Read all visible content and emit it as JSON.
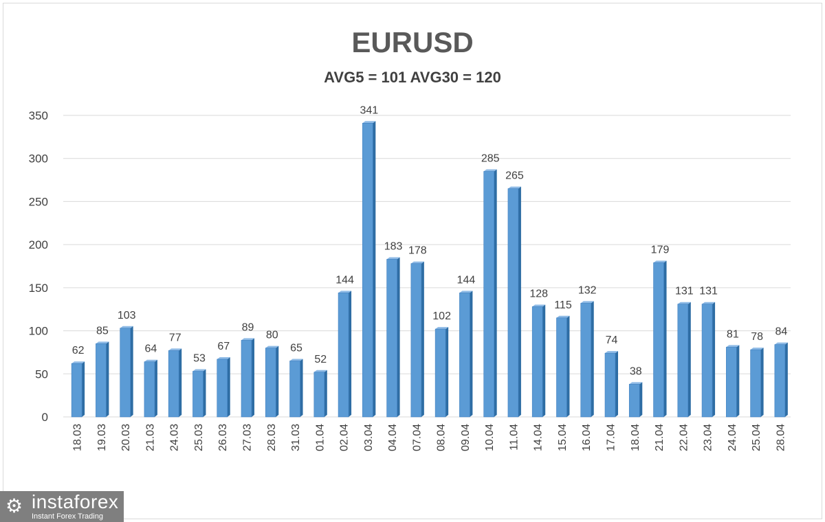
{
  "chart_data": {
    "type": "bar",
    "title": "EURUSD",
    "subtitle": "AVG5 = 101 AVG30 = 120",
    "xlabel": "",
    "ylabel": "",
    "ylim": [
      0,
      350
    ],
    "yticks": [
      0,
      50,
      100,
      150,
      200,
      250,
      300,
      350
    ],
    "grid": true,
    "color": "#5b9bd5",
    "categories": [
      "18.03",
      "19.03",
      "20.03",
      "21.03",
      "24.03",
      "25.03",
      "26.03",
      "27.03",
      "28.03",
      "31.03",
      "01.04",
      "02.04",
      "03.04",
      "04.04",
      "07.04",
      "08.04",
      "09.04",
      "10.04",
      "11.04",
      "14.04",
      "15.04",
      "16.04",
      "17.04",
      "18.04",
      "21.04",
      "22.04",
      "23.04",
      "24.04",
      "25.04",
      "28.04"
    ],
    "values": [
      62,
      85,
      103,
      64,
      77,
      53,
      67,
      89,
      80,
      65,
      52,
      144,
      341,
      183,
      178,
      102,
      144,
      285,
      265,
      128,
      115,
      132,
      74,
      38,
      179,
      131,
      131,
      81,
      78,
      84
    ]
  },
  "logo": {
    "name": "instaforex",
    "tagline": "Instant Forex Trading"
  }
}
